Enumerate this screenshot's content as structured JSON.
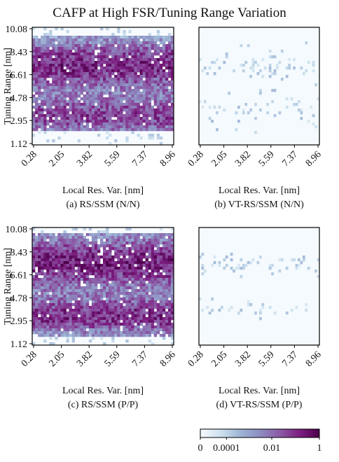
{
  "title": "CAFP at High FSR/Tuning Range Variation",
  "colorbar": {
    "ticks": [
      "0",
      "0.0001",
      "0.01",
      "1"
    ],
    "gradient": [
      "#f6fbfd",
      "#cfe2ef",
      "#9fb6d6",
      "#8c8dc1",
      "#8c5aa6",
      "#7d1f82",
      "#4d004b"
    ]
  },
  "chart_data": [
    {
      "type": "heatmap",
      "caption": "(a) RS/SSM (N/N)",
      "xlabel": "Local Res. Var. [nm]",
      "ylabel": "Tuning Range [nm]",
      "xticks": [
        "0.28",
        "2.05",
        "3.82",
        "5.59",
        "7.37",
        "8.96"
      ],
      "yticks": [
        "10.08",
        "8.43",
        "6.61",
        "4.78",
        "2.95",
        "1.12"
      ],
      "xlim": [
        0.28,
        8.96
      ],
      "ylim": [
        1.12,
        10.08
      ],
      "density": "dense",
      "bands": [
        {
          "center": 7.2,
          "width": 1.4,
          "weight": 1.0
        },
        {
          "center": 3.3,
          "width": 1.0,
          "weight": 0.85
        }
      ],
      "background_fill": 0.45,
      "yspan": [
        2.2,
        9.4
      ]
    },
    {
      "type": "heatmap",
      "caption": "(b) VT-RS/SSM (N/N)",
      "xlabel": "Local Res. Var. [nm]",
      "ylabel": "",
      "xticks": [
        "0.28",
        "2.05",
        "3.82",
        "5.59",
        "7.37",
        "8.96"
      ],
      "yticks": [],
      "xlim": [
        0.28,
        8.96
      ],
      "ylim": [
        1.12,
        10.08
      ],
      "density": "sparse",
      "bands": [
        {
          "center": 7.0,
          "width": 0.5,
          "weight": 0.6
        },
        {
          "center": 4.0,
          "width": 0.5,
          "weight": 0.3
        }
      ],
      "background_fill": 0.02,
      "yspan": [
        2.0,
        9.0
      ]
    },
    {
      "type": "heatmap",
      "caption": "(c) RS/SSM (P/P)",
      "xlabel": "Local Res. Var. [nm]",
      "ylabel": "Tuning Range [nm]",
      "xticks": [
        "0.28",
        "2.05",
        "3.82",
        "5.59",
        "7.37",
        "8.96"
      ],
      "yticks": [
        "10.08",
        "8.43",
        "6.61",
        "4.78",
        "2.95",
        "1.12"
      ],
      "xlim": [
        0.28,
        8.96
      ],
      "ylim": [
        1.12,
        10.08
      ],
      "density": "dense",
      "bands": [
        {
          "center": 7.4,
          "width": 1.4,
          "weight": 1.0
        },
        {
          "center": 3.3,
          "width": 1.0,
          "weight": 0.9
        }
      ],
      "background_fill": 0.5,
      "yspan": [
        1.7,
        9.7
      ]
    },
    {
      "type": "heatmap",
      "caption": "(d) VT-RS/SSM (P/P)",
      "xlabel": "Local Res. Var. [nm]",
      "ylabel": "",
      "xticks": [
        "0.28",
        "2.05",
        "3.82",
        "5.59",
        "7.37",
        "8.96"
      ],
      "yticks": [],
      "xlim": [
        0.28,
        8.96
      ],
      "ylim": [
        1.12,
        10.08
      ],
      "density": "sparse",
      "bands": [
        {
          "center": 7.2,
          "width": 0.4,
          "weight": 0.6
        },
        {
          "center": 3.9,
          "width": 0.4,
          "weight": 0.35
        }
      ],
      "background_fill": 0.01,
      "yspan": [
        3.0,
        8.5
      ]
    }
  ]
}
